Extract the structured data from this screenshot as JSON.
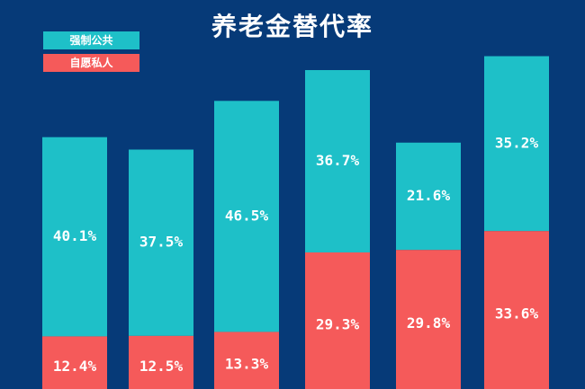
{
  "title": "养老金替代率",
  "legend": [
    {
      "label": "强制公共",
      "color": "#1ec0c8"
    },
    {
      "label": "自愿私人",
      "color": "#f55a5a"
    }
  ],
  "colors": {
    "background": "#063a78",
    "public": "#1ec0c8",
    "private": "#f55a5a"
  },
  "chart_data": {
    "type": "bar",
    "stacked": true,
    "title": "养老金替代率",
    "categories": [
      "",
      "",
      "",
      "",
      "",
      ""
    ],
    "series": [
      {
        "name": "自愿私人",
        "values": [
          12.4,
          12.5,
          13.3,
          29.3,
          29.8,
          33.6
        ],
        "labels": [
          "12.4%",
          "12.5%",
          "13.3%",
          "29.3%",
          "29.8%",
          "33.6%"
        ]
      },
      {
        "name": "强制公共",
        "values": [
          40.1,
          37.5,
          46.5,
          36.7,
          21.6,
          35.2
        ],
        "labels": [
          "40.1%",
          "37.5%",
          "46.5%",
          "36.7%",
          "21.6%",
          "35.2%"
        ]
      }
    ],
    "ylim": [
      0,
      80
    ],
    "grid": false,
    "legend_position": "top-left"
  }
}
